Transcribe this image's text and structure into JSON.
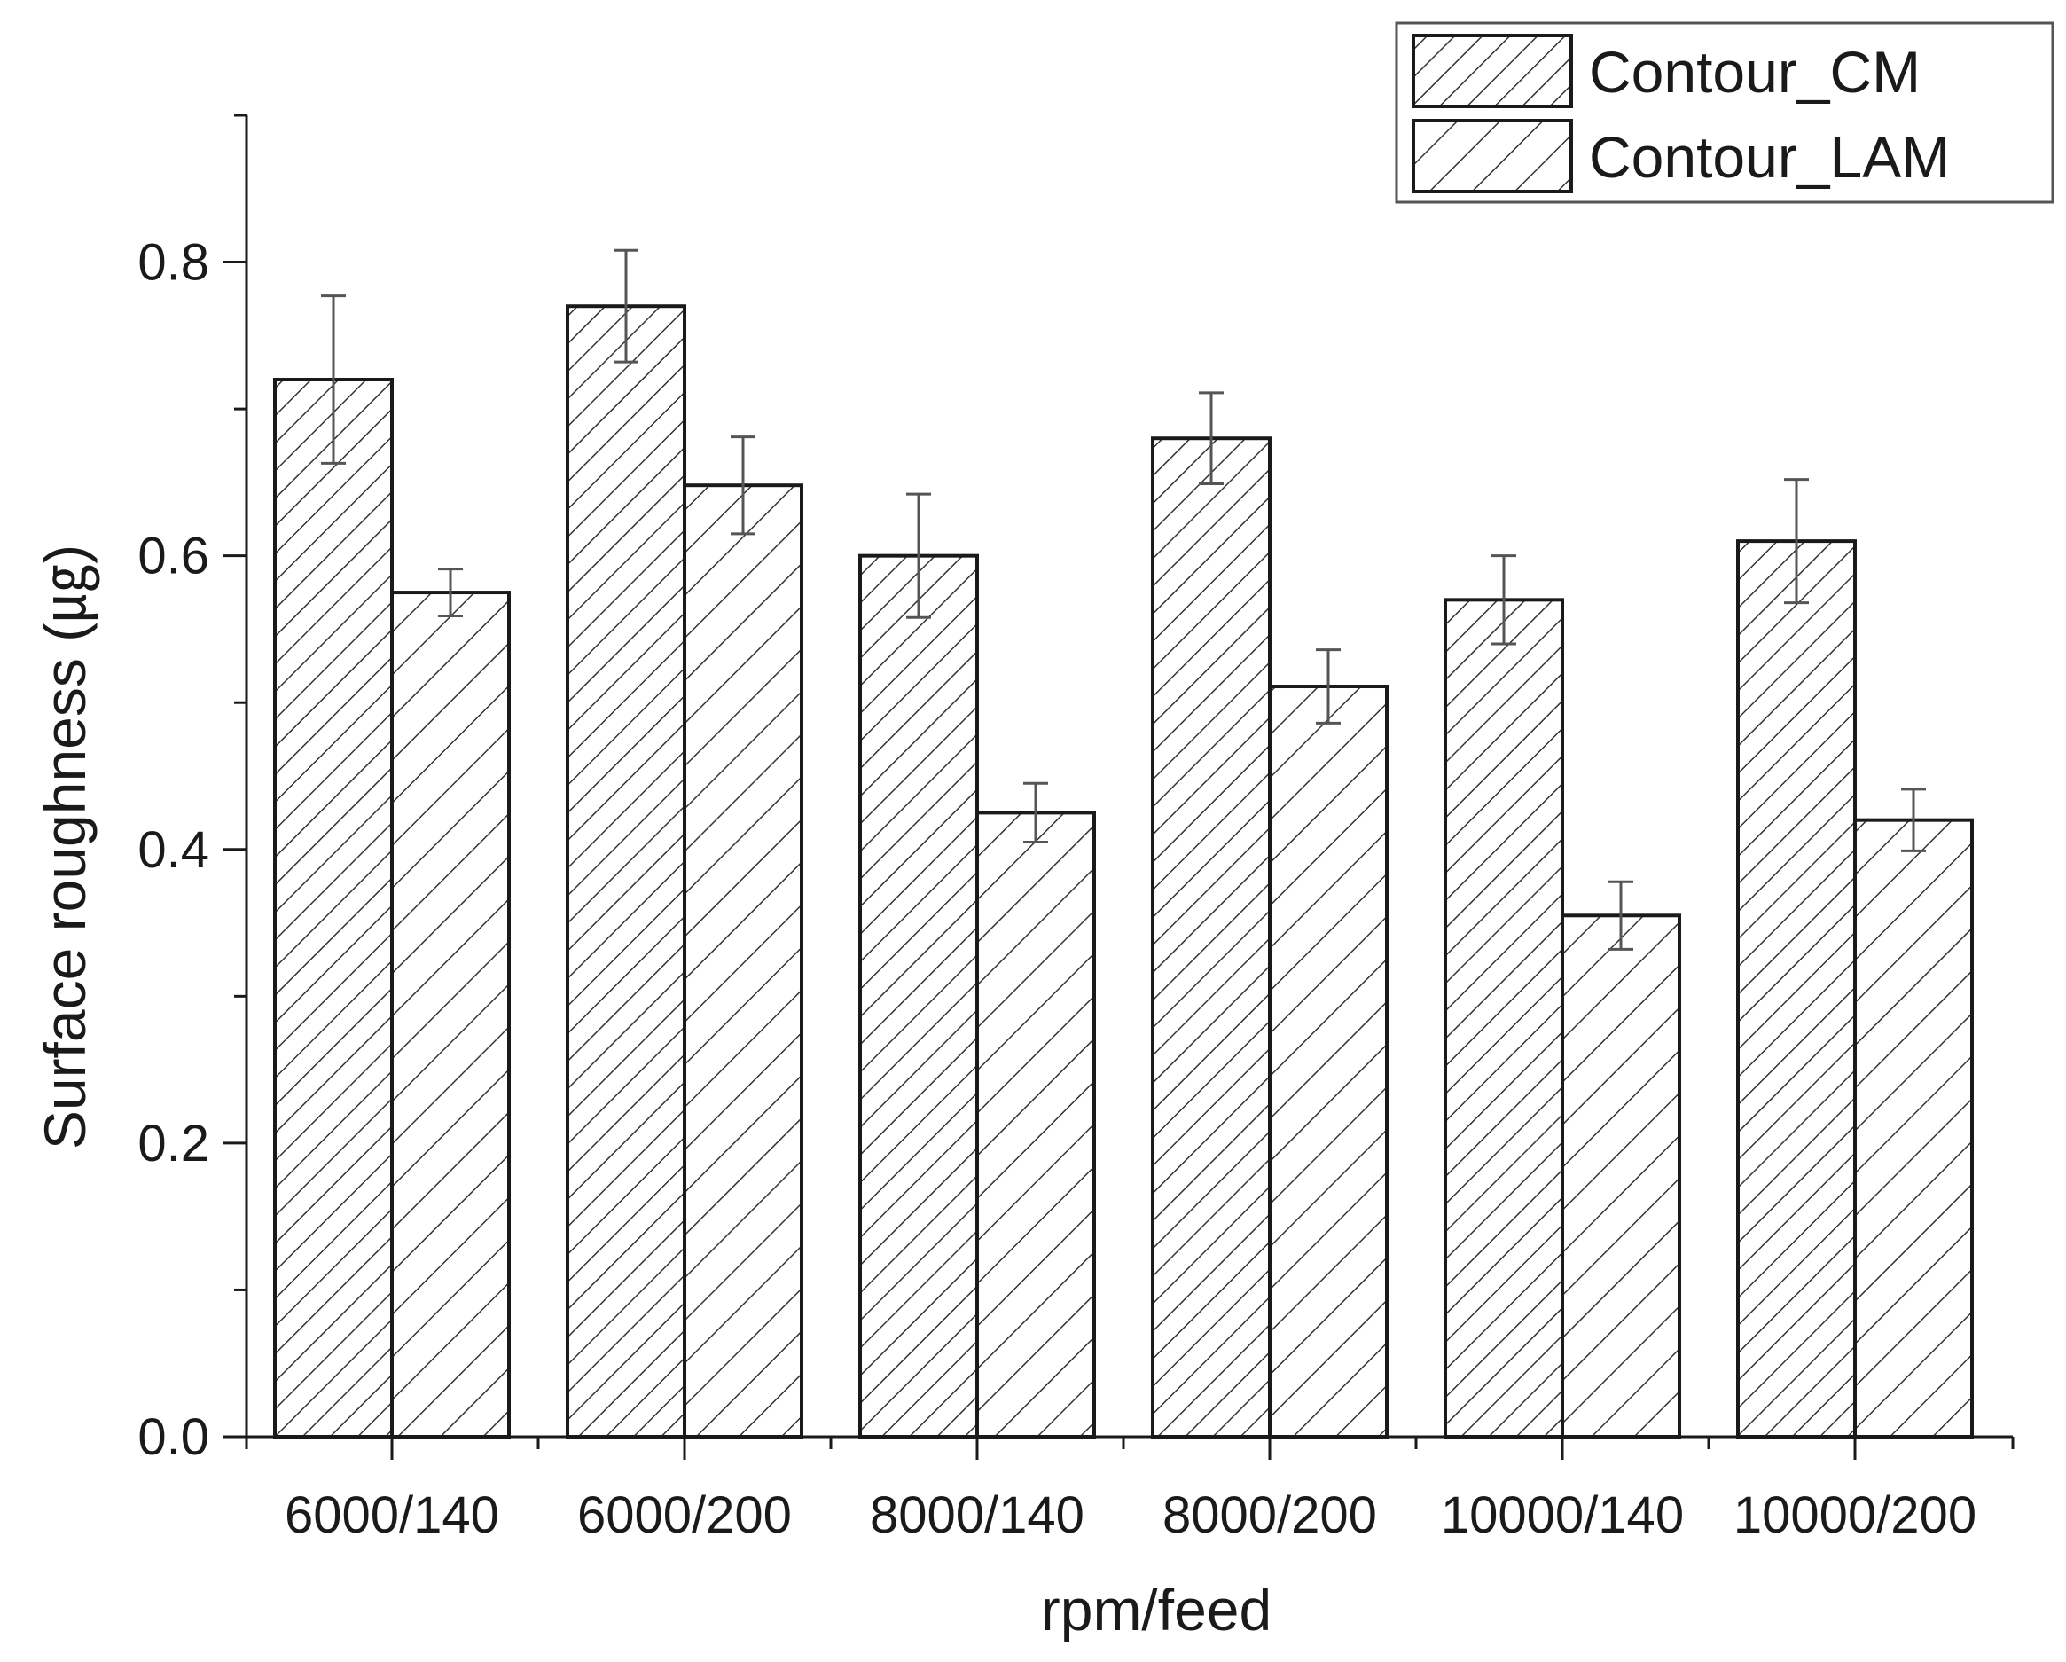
{
  "chart_data": {
    "type": "bar",
    "xlabel": "rpm/feed",
    "ylabel": "Surface roughness (㎍)",
    "ylim": [
      0,
      0.9
    ],
    "yticks": [
      "0.0",
      "0.2",
      "0.4",
      "0.6",
      "0.8"
    ],
    "ytick_values": [
      0,
      0.2,
      0.4,
      0.6,
      0.8
    ],
    "categories": [
      "6000/140",
      "6000/200",
      "8000/140",
      "8000/200",
      "10000/140",
      "10000/200"
    ],
    "series": [
      {
        "name": "Contour_CM",
        "pattern": "dense-hatch",
        "values": [
          0.72,
          0.77,
          0.6,
          0.68,
          0.57,
          0.61
        ],
        "errors": [
          0.057,
          0.038,
          0.042,
          0.031,
          0.03,
          0.042
        ]
      },
      {
        "name": "Contour_LAM",
        "pattern": "sparse-hatch",
        "values": [
          0.575,
          0.648,
          0.425,
          0.511,
          0.355,
          0.42
        ],
        "errors": [
          0.016,
          0.033,
          0.02,
          0.025,
          0.023,
          0.021
        ]
      }
    ],
    "legend_position": "top-right",
    "grid": false,
    "colors": {
      "bar_fill": "#ffffff",
      "stroke": "#1a1a1a",
      "hatch": "#333333",
      "error": "#555555"
    }
  }
}
